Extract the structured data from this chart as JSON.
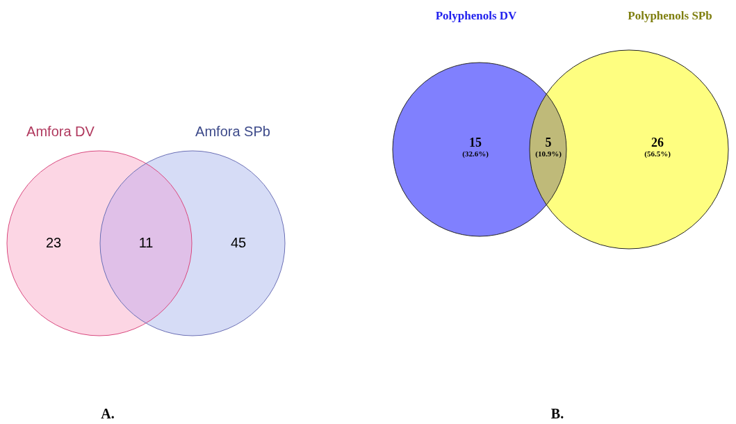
{
  "chart_data": [
    {
      "type": "other",
      "categories": [
        "Amfora DV",
        null,
        "Amfora SPb"
      ],
      "values": [
        23,
        11,
        45
      ],
      "colors": [
        "#fcd6e4",
        "#e0c0e8",
        "#d6dcf6"
      ],
      "data_labels": true,
      "annotations": [
        "A."
      ]
    },
    {
      "type": "other",
      "categories": [
        "Polyphenols DV",
        null,
        "Polyphenols SPb"
      ],
      "values": [
        15,
        5,
        26
      ],
      "colors": [
        "#8080fe",
        "#bfba79",
        "#fefe80"
      ],
      "value_labels": [
        "15\n(32.6%)",
        "5\n(10.9%)",
        "26\n(56.5%)"
      ],
      "annotations": [
        "B."
      ]
    }
  ]
}
